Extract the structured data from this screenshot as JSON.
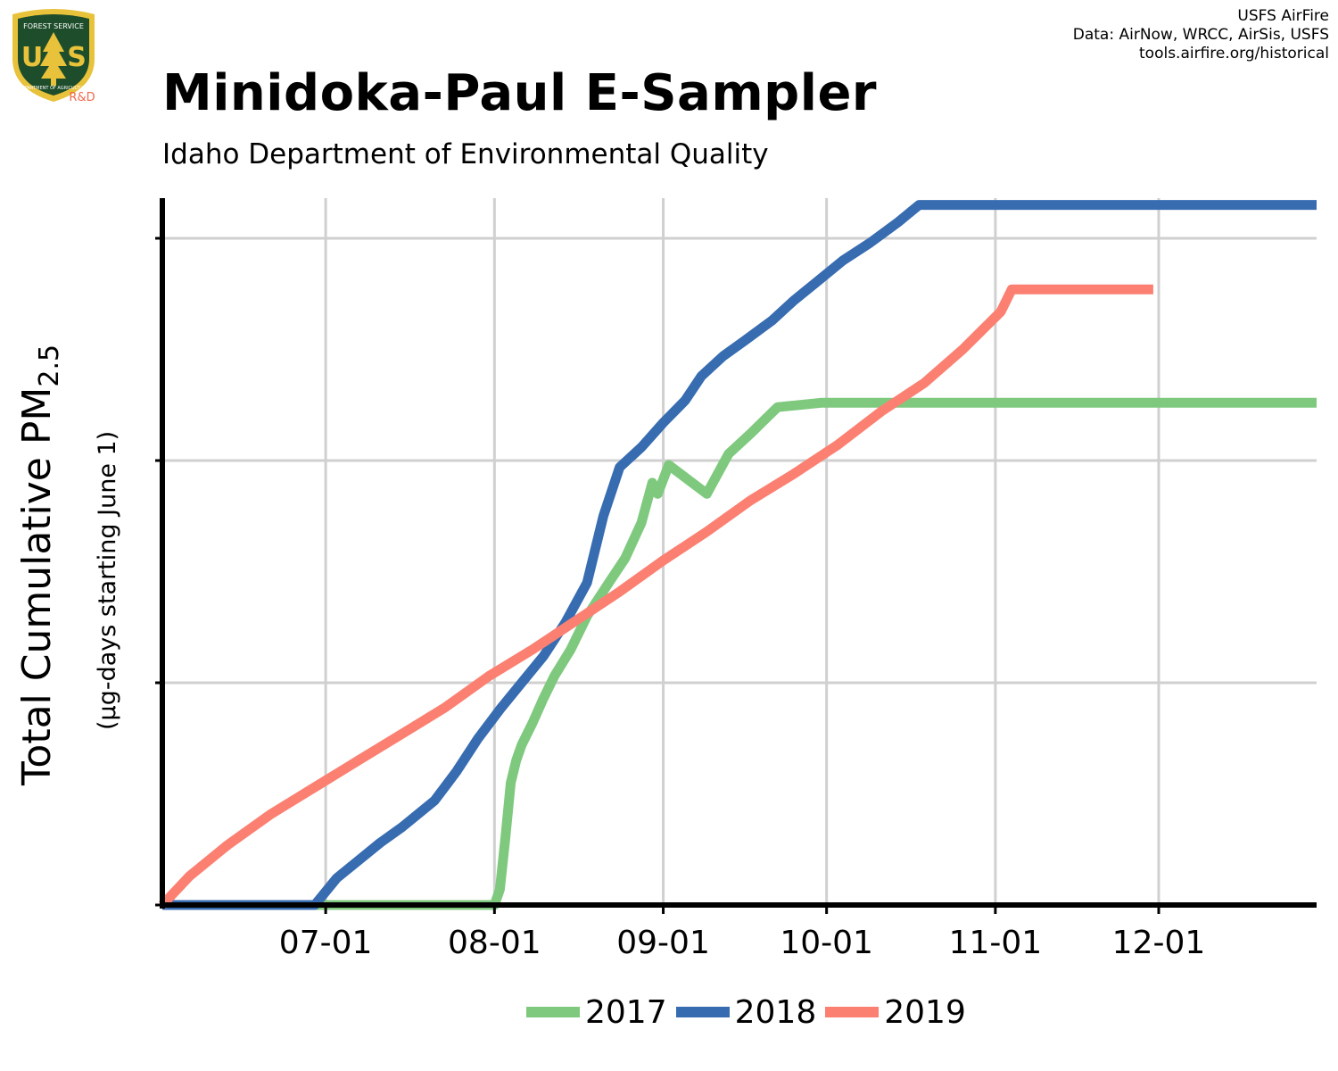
{
  "header": {
    "title": "Minidoka-Paul E-Sampler",
    "subtitle": "Idaho Department of Environmental Quality",
    "credits": [
      "USFS AirFire",
      "Data: AirNow, WRCC, AirSis, USFS",
      "tools.airfire.org/historical"
    ],
    "logo": {
      "name": "usfs-shield-logo",
      "text_top": "FOREST SERVICE",
      "text_mid": "US",
      "text_bottom": "DEPARTMENT OF AGRICULTURE",
      "rd": "R&D"
    }
  },
  "colors": {
    "s2017": "#7fc97f",
    "s2018": "#386cb0",
    "s2019": "#fb8072",
    "grid": "#d0d0d0",
    "axis": "#000000",
    "logo_green": "#1e4d2b",
    "logo_gold": "#e8c23a",
    "rd_red": "#f06a50"
  },
  "chart_data": {
    "type": "line",
    "title": "Minidoka-Paul E-Sampler",
    "subtitle": "Idaho Department of Environmental Quality",
    "ylabel_main": "Total Cumulative PM",
    "ylabel_sub": "2.5",
    "ylabel_secondary": "(µg-days starting June 1)",
    "xlabel": "",
    "x_tick_labels": [
      "07-01",
      "08-01",
      "09-01",
      "10-01",
      "11-01",
      "12-01"
    ],
    "x_tick_days": [
      30,
      61,
      92,
      122,
      153,
      183
    ],
    "xlim_days": [
      0,
      212
    ],
    "ylim_relative": [
      0,
      3.17
    ],
    "y_ticks_relative": [
      0,
      1,
      2,
      3
    ],
    "y_tick_labels_visible": false,
    "grid": true,
    "legend": "bottom",
    "x_units": "days since June 1 (MM-DD axis)",
    "series": [
      {
        "name": "2017",
        "color_key": "s2017",
        "points": [
          [
            0,
            0
          ],
          [
            61,
            0
          ],
          [
            62,
            0.07
          ],
          [
            63,
            0.3
          ],
          [
            64,
            0.55
          ],
          [
            65,
            0.65
          ],
          [
            66,
            0.72
          ],
          [
            68,
            0.82
          ],
          [
            70,
            0.93
          ],
          [
            72,
            1.03
          ],
          [
            75,
            1.15
          ],
          [
            78,
            1.3
          ],
          [
            82,
            1.45
          ],
          [
            85,
            1.56
          ],
          [
            88,
            1.72
          ],
          [
            90,
            1.9
          ],
          [
            91,
            1.85
          ],
          [
            93,
            1.98
          ],
          [
            100,
            1.85
          ],
          [
            104,
            2.03
          ],
          [
            108,
            2.12
          ],
          [
            113,
            2.24
          ],
          [
            121,
            2.26
          ],
          [
            212,
            2.26
          ]
        ]
      },
      {
        "name": "2018",
        "color_key": "s2018",
        "points": [
          [
            0,
            0
          ],
          [
            28,
            0
          ],
          [
            32,
            0.12
          ],
          [
            36,
            0.2
          ],
          [
            40,
            0.28
          ],
          [
            44,
            0.35
          ],
          [
            50,
            0.47
          ],
          [
            54,
            0.6
          ],
          [
            58,
            0.75
          ],
          [
            62,
            0.88
          ],
          [
            66,
            1.0
          ],
          [
            70,
            1.12
          ],
          [
            74,
            1.27
          ],
          [
            78,
            1.45
          ],
          [
            81,
            1.75
          ],
          [
            84,
            1.97
          ],
          [
            88,
            2.06
          ],
          [
            92,
            2.17
          ],
          [
            96,
            2.27
          ],
          [
            99,
            2.38
          ],
          [
            103,
            2.47
          ],
          [
            107,
            2.54
          ],
          [
            112,
            2.63
          ],
          [
            116,
            2.72
          ],
          [
            120,
            2.8
          ],
          [
            125,
            2.9
          ],
          [
            130,
            2.98
          ],
          [
            135,
            3.07
          ],
          [
            139,
            3.15
          ],
          [
            143,
            3.15
          ],
          [
            212,
            3.15
          ]
        ]
      },
      {
        "name": "2019",
        "color_key": "s2019",
        "points": [
          [
            0,
            0
          ],
          [
            5,
            0.13
          ],
          [
            12,
            0.27
          ],
          [
            20,
            0.41
          ],
          [
            28,
            0.53
          ],
          [
            36,
            0.65
          ],
          [
            44,
            0.77
          ],
          [
            52,
            0.89
          ],
          [
            60,
            1.03
          ],
          [
            68,
            1.15
          ],
          [
            76,
            1.28
          ],
          [
            84,
            1.41
          ],
          [
            92,
            1.55
          ],
          [
            100,
            1.68
          ],
          [
            108,
            1.82
          ],
          [
            116,
            1.94
          ],
          [
            124,
            2.07
          ],
          [
            132,
            2.22
          ],
          [
            140,
            2.35
          ],
          [
            147,
            2.5
          ],
          [
            154,
            2.67
          ],
          [
            156,
            2.77
          ],
          [
            182,
            2.77
          ]
        ]
      }
    ]
  }
}
